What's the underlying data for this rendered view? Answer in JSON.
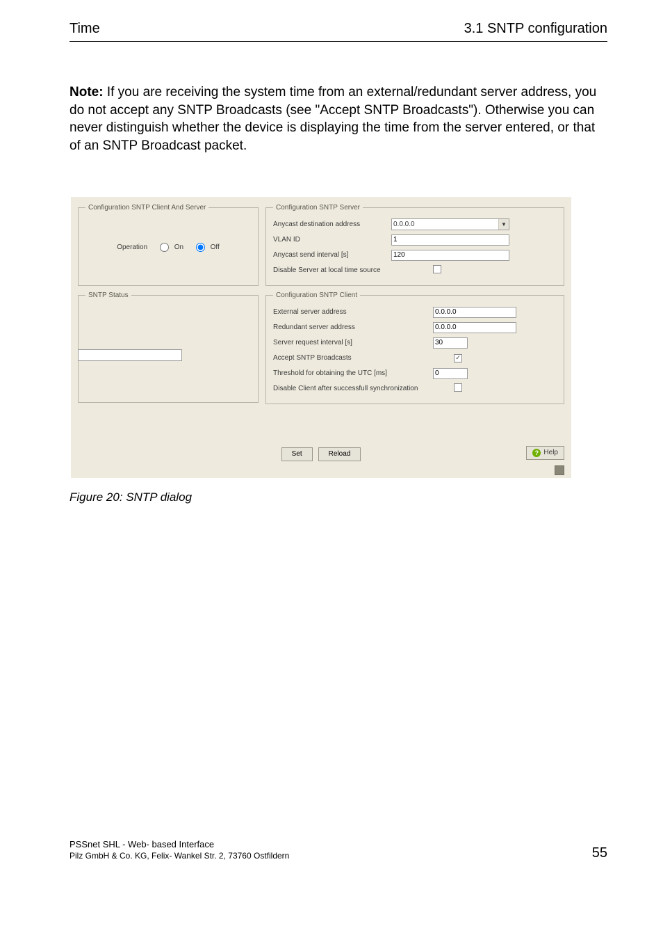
{
  "header": {
    "left": "Time",
    "right": "3.1  SNTP configuration"
  },
  "note": {
    "label": "Note:",
    "text": " If you are receiving the system time from an external/redundant server address, you do not accept any SNTP Broadcasts (see \"Accept SNTP Broadcasts\"). Otherwise you can never distinguish whether the device is displaying the time from the server entered, or that of an SNTP Broadcast packet."
  },
  "dialog": {
    "fs_operation": {
      "legend": "Configuration SNTP Client And Server",
      "operation_label": "Operation",
      "on_label": "On",
      "off_label": "Off",
      "value": "off"
    },
    "fs_server": {
      "legend": "Configuration SNTP Server",
      "anycast_addr": {
        "label": "Anycast destination address",
        "value": "0.0.0.0"
      },
      "vlan_id": {
        "label": "VLAN ID",
        "value": "1"
      },
      "send_interval": {
        "label": "Anycast send interval [s]",
        "value": "120"
      },
      "disable_local": {
        "label": "Disable Server at local time source",
        "checked": false
      }
    },
    "fs_status": {
      "legend": "SNTP Status"
    },
    "fs_client": {
      "legend": "Configuration SNTP Client",
      "ext_addr": {
        "label": "External server address",
        "value": "0.0.0.0"
      },
      "redund_addr": {
        "label": "Redundant server address",
        "value": "0.0.0.0"
      },
      "req_interval": {
        "label": "Server request interval [s]",
        "value": "30"
      },
      "accept_bcast": {
        "label": "Accept SNTP Broadcasts",
        "checked": true
      },
      "threshold": {
        "label": "Threshold for obtaining the UTC [ms]",
        "value": "0"
      },
      "disable_sync": {
        "label": "Disable Client after successfull synchronization",
        "checked": false
      }
    },
    "buttons": {
      "set": "Set",
      "reload": "Reload",
      "help": "Help"
    }
  },
  "caption": "Figure 20: SNTP dialog",
  "footer": {
    "line1": "PSSnet SHL - Web- based Interface",
    "line2": "Pilz GmbH & Co. KG, Felix- Wankel Str. 2, 73760 Ostfildern",
    "page": "55"
  }
}
